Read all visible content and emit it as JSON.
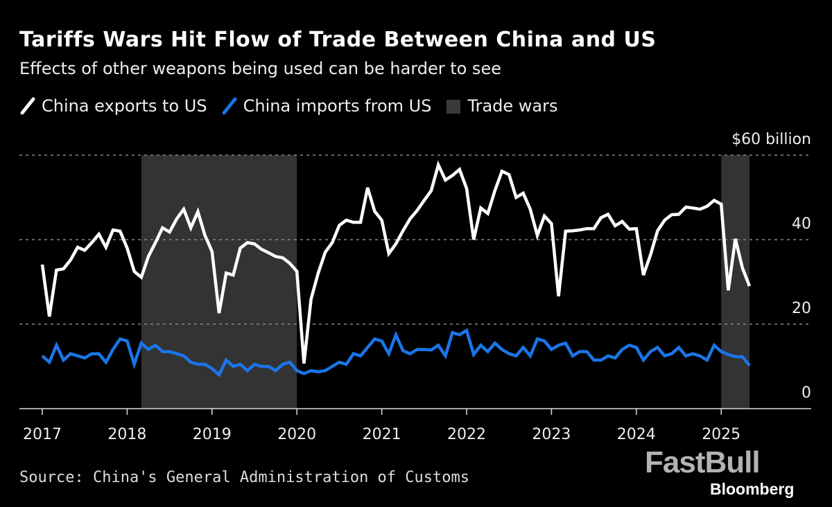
{
  "chart_data": {
    "type": "line",
    "title": "Tariffs Wars Hit Flow of Trade Between China and US",
    "subtitle": "Effects of other weapons being used can be harder to see",
    "x_start": "2017-01",
    "x_frequency": "monthly",
    "x_ticks": [
      "2017",
      "2018",
      "2019",
      "2020",
      "2021",
      "2022",
      "2023",
      "2024",
      "2025"
    ],
    "y_ticks": [
      {
        "value": 60,
        "label": "$60 billion"
      },
      {
        "value": 40,
        "label": "40"
      },
      {
        "value": 20,
        "label": "20"
      },
      {
        "value": 0,
        "label": "0"
      }
    ],
    "ylim": [
      0,
      60
    ],
    "grid": true,
    "legend_position": "top-left",
    "series": [
      {
        "name": "China exports to US",
        "color": "#ffffff",
        "values": [
          34.1,
          21.8,
          32.8,
          33.1,
          35.2,
          38.2,
          37.5,
          39.3,
          41.3,
          38.2,
          42.3,
          42.0,
          38.0,
          32.5,
          31.1,
          36.0,
          39.3,
          42.8,
          41.8,
          44.9,
          47.2,
          42.8,
          46.6,
          41.0,
          37.2,
          22.6,
          32.1,
          31.6,
          38.0,
          39.3,
          39.0,
          37.7,
          36.9,
          36.0,
          35.7,
          34.4,
          32.5,
          10.7,
          25.9,
          32.0,
          37.0,
          39.3,
          43.4,
          44.6,
          44.1,
          44.1,
          52.3,
          46.7,
          44.6,
          36.7,
          39.0,
          42.1,
          44.9,
          46.9,
          49.3,
          51.6,
          57.7,
          54.1,
          55.2,
          56.6,
          52.1,
          40.0,
          47.5,
          46.2,
          51.6,
          56.2,
          55.4,
          50.0,
          51.0,
          47.2,
          41.0,
          45.6,
          43.8,
          26.6,
          42.0,
          42.1,
          42.3,
          42.6,
          42.6,
          45.2,
          46.0,
          43.3,
          44.3,
          42.5,
          42.6,
          31.6,
          36.4,
          42.1,
          44.6,
          45.9,
          46.0,
          47.7,
          47.5,
          47.2,
          47.9,
          49.3,
          48.4,
          28.0,
          40.2,
          33.3,
          29.0
        ]
      },
      {
        "name": "China imports from US",
        "color": "#1a75e8",
        "values": [
          12.5,
          11,
          15,
          11.5,
          13,
          12.5,
          12,
          13,
          13,
          11,
          14,
          16.5,
          16,
          10.5,
          15.5,
          14,
          15,
          13.5,
          13.5,
          13,
          12.5,
          11,
          10.5,
          10.5,
          9.5,
          8,
          11.5,
          10,
          10.5,
          9,
          10.5,
          10,
          10,
          9,
          10.5,
          11,
          9,
          8.3,
          9,
          8.7,
          9,
          10,
          11,
          10.5,
          13,
          12.5,
          14.5,
          16.5,
          16,
          13,
          17.5,
          13.7,
          13,
          14,
          14,
          13.9,
          15,
          12.5,
          18,
          17.5,
          18.5,
          12.8,
          15,
          13.5,
          15.5,
          14,
          13,
          12.5,
          14.5,
          12.5,
          16.5,
          16,
          14,
          15,
          15.5,
          12.5,
          13.5,
          13.5,
          11.5,
          11.5,
          12.5,
          12,
          14,
          15,
          14.5,
          11.5,
          13.5,
          14.5,
          12.5,
          13,
          14.5,
          12.5,
          13,
          12.5,
          11.5,
          15,
          13.5,
          12.8,
          12.3,
          12.3,
          10.2
        ]
      }
    ],
    "shaded_periods": [
      {
        "name": "Trade wars",
        "start": "2018-03",
        "end": "2020-01"
      },
      {
        "name": "Trade wars",
        "start": "2025-01",
        "end": "2025-05"
      }
    ],
    "shade_color": "#333333"
  },
  "legend": {
    "exports": "China exports to US",
    "imports": "China imports from US",
    "trade_wars": "Trade wars"
  },
  "source": "Source: China's General Administration of Customs",
  "watermark": {
    "brand": "FastBull",
    "publisher": "Bloomberg"
  }
}
